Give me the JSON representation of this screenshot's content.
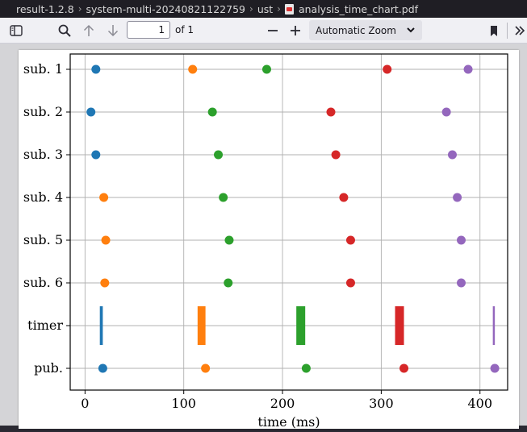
{
  "breadcrumb": {
    "items": [
      "result-1.2.8",
      "system-multi-20240821122759",
      "ust",
      "analysis_time_chart.pdf"
    ]
  },
  "toolbar": {
    "icons": [
      "sidebar-toggle-icon",
      "search-icon",
      "arrow-up-icon",
      "arrow-down-icon",
      "zoom-out-icon",
      "zoom-in-icon",
      "bookmark-icon",
      "more-tools-icon"
    ],
    "page_number": "1",
    "page_count": "of 1",
    "zoom_label": "Automatic Zoom"
  },
  "colors": {
    "blue": "#1f77b4",
    "orange": "#ff7f0e",
    "green": "#2ca02c",
    "red": "#d62728",
    "purple": "#9467bd"
  },
  "chart_data": {
    "type": "scatter",
    "xlabel": "time (ms)",
    "xlim": [
      -15,
      428
    ],
    "x_ticks": [
      0,
      100,
      200,
      300,
      400
    ],
    "categories": [
      "sub. 1",
      "sub. 2",
      "sub. 3",
      "sub. 4",
      "sub. 5",
      "sub. 6",
      "timer",
      "pub."
    ],
    "grid": true,
    "legend": "none",
    "period_colors": [
      "#1f77b4",
      "#ff7f0e",
      "#2ca02c",
      "#d62728",
      "#9467bd"
    ],
    "points": {
      "sub. 1": [
        11,
        109,
        184,
        306,
        388
      ],
      "sub. 2": [
        6,
        129,
        249,
        366
      ],
      "sub. 3": [
        11,
        135,
        254,
        372
      ],
      "sub. 4": [
        19,
        140,
        262,
        377
      ],
      "sub. 5": [
        21,
        146,
        269,
        381
      ],
      "sub. 6": [
        20,
        145,
        269,
        381
      ],
      "pub.": [
        18,
        122,
        224,
        323,
        415
      ]
    },
    "point_colors": {
      "sub. 1": [
        "#1f77b4",
        "#ff7f0e",
        "#2ca02c",
        "#d62728",
        "#9467bd"
      ],
      "sub. 2": [
        "#1f77b4",
        "#2ca02c",
        "#d62728",
        "#9467bd"
      ],
      "sub. 3": [
        "#1f77b4",
        "#2ca02c",
        "#d62728",
        "#9467bd"
      ],
      "sub. 4": [
        "#ff7f0e",
        "#2ca02c",
        "#d62728",
        "#9467bd"
      ],
      "sub. 5": [
        "#ff7f0e",
        "#2ca02c",
        "#d62728",
        "#9467bd"
      ],
      "sub. 6": [
        "#ff7f0e",
        "#2ca02c",
        "#d62728",
        "#9467bd"
      ],
      "pub.": [
        "#1f77b4",
        "#ff7f0e",
        "#2ca02c",
        "#d62728",
        "#9467bd"
      ]
    },
    "timer_spans": [
      {
        "start": 15,
        "end": 18,
        "color": "#1f77b4"
      },
      {
        "start": 114,
        "end": 122,
        "color": "#ff7f0e"
      },
      {
        "start": 214,
        "end": 223,
        "color": "#2ca02c"
      },
      {
        "start": 314,
        "end": 323,
        "color": "#d62728"
      },
      {
        "start": 413,
        "end": 415,
        "color": "#9467bd"
      }
    ]
  }
}
